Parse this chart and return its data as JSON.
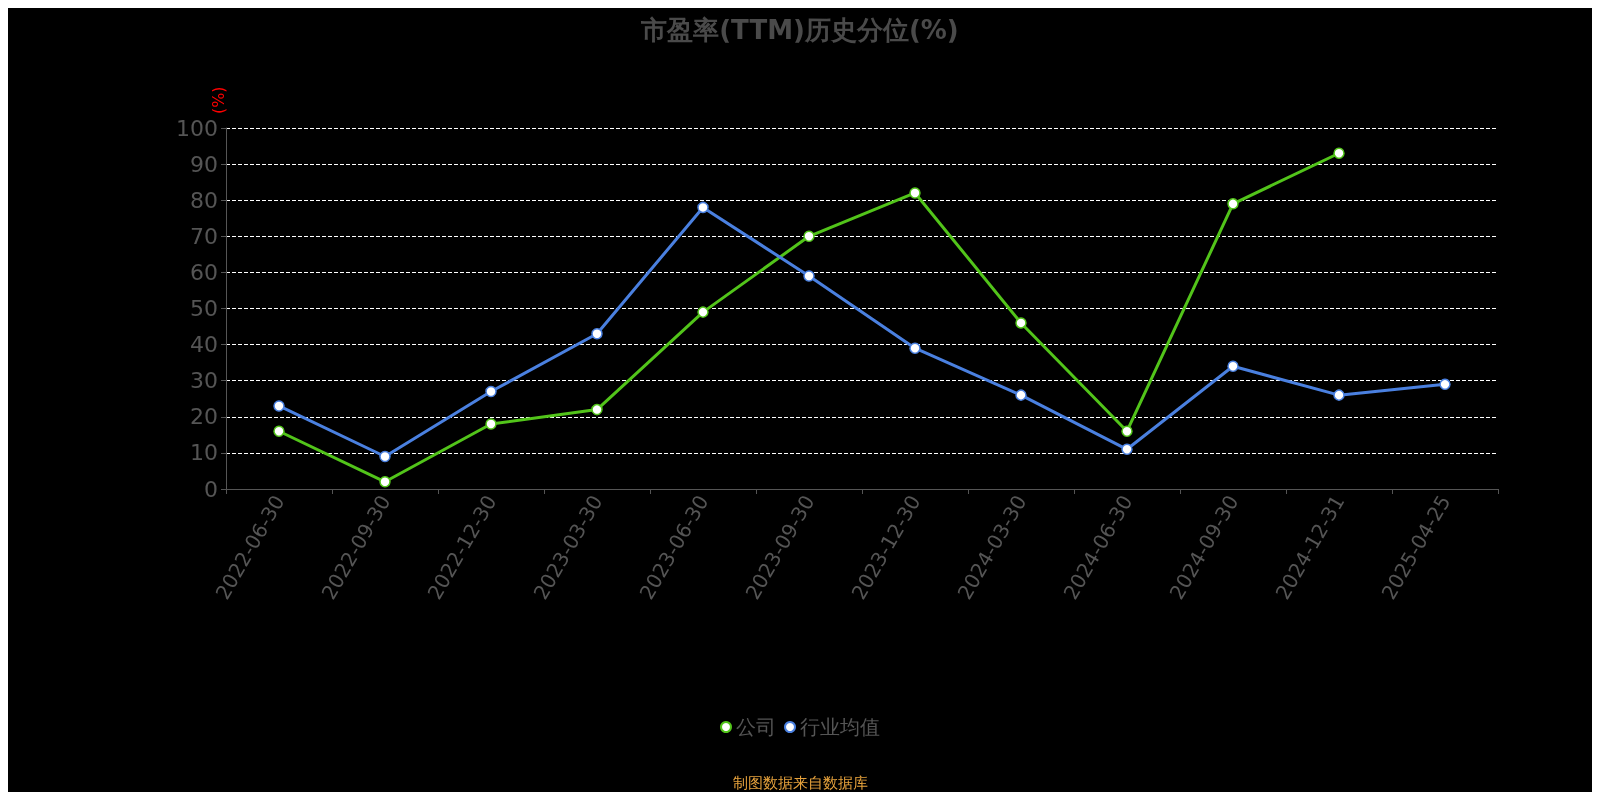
{
  "chart_data": {
    "type": "line",
    "title": "市盈率(TTM)历史分位(%)",
    "ylabel": "(%)",
    "categories": [
      "2022-06-30",
      "2022-09-30",
      "2022-12-30",
      "2023-03-30",
      "2023-06-30",
      "2023-09-30",
      "2023-12-30",
      "2024-03-30",
      "2024-06-30",
      "2024-09-30",
      "2024-12-31",
      "2025-04-25"
    ],
    "series": [
      {
        "name": "公司",
        "color": "#52c41a",
        "values": [
          16,
          2,
          18,
          22,
          49,
          70,
          82,
          46,
          16,
          79,
          93,
          null
        ]
      },
      {
        "name": "行业均值",
        "color": "#4a80e0",
        "values": [
          23,
          9,
          27,
          43,
          78,
          59,
          39,
          26,
          11,
          34,
          26,
          29
        ]
      }
    ],
    "ylim": [
      0,
      100
    ],
    "yticks": [
      0,
      10,
      20,
      30,
      40,
      50,
      60,
      70,
      80,
      90,
      100
    ],
    "grid": "y",
    "legend": "bottom",
    "marker": "circle",
    "line_style": "solid",
    "annotations": [
      "制图数据来自数据库"
    ]
  }
}
